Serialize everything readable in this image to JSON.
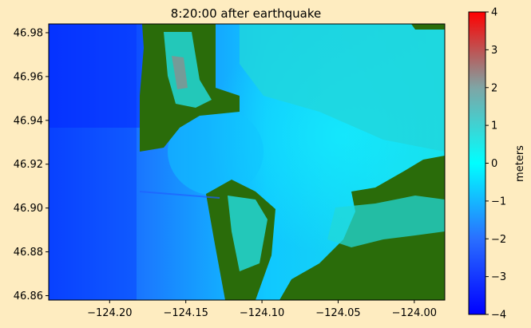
{
  "chart_data": {
    "type": "heatmap",
    "title": "8:20:00 after earthquake",
    "xlabel": "",
    "ylabel": "",
    "xlim": [
      -124.24,
      -123.98
    ],
    "ylim": [
      46.858,
      46.984
    ],
    "x_ticks": [
      -124.2,
      -124.15,
      -124.1,
      -124.05,
      -124.0
    ],
    "x_tick_labels": [
      "−124.20",
      "−124.15",
      "−124.10",
      "−124.05",
      "−124.00"
    ],
    "y_ticks": [
      46.86,
      46.88,
      46.9,
      46.92,
      46.94,
      46.96,
      46.98
    ],
    "y_tick_labels": [
      "46.86",
      "46.88",
      "46.90",
      "46.92",
      "46.94",
      "46.96",
      "46.98"
    ],
    "colorbar": {
      "label": "meters",
      "range": [
        -4,
        4
      ],
      "ticks": [
        -4,
        -3,
        -2,
        -1,
        0,
        1,
        2,
        3,
        4
      ],
      "tick_labels": [
        "−4",
        "−3",
        "−2",
        "−1",
        "0",
        "1",
        "2",
        "3",
        "4"
      ],
      "colormap": [
        "#0000ff",
        "#00ffff",
        "#808080",
        "#ff0000"
      ]
    },
    "land_color": "#2a6c0a",
    "grid": false,
    "legend": "none"
  }
}
